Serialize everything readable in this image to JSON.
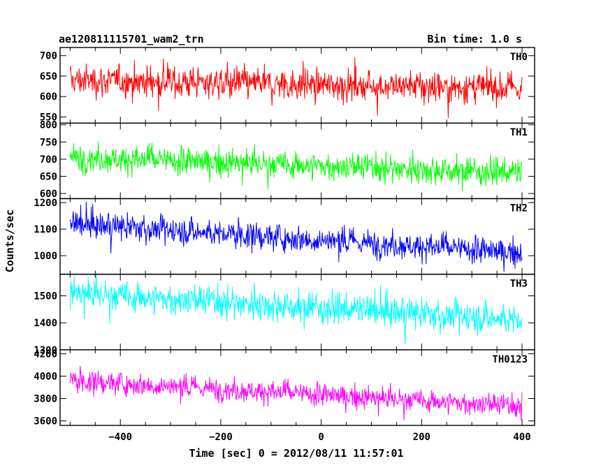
{
  "header": {
    "title": "ae120811115701_wam2_trn",
    "bin_time": "Bin time: 1.0 s"
  },
  "chart_data": {
    "type": "line",
    "ylabel": "Counts/sec",
    "xlabel": "Time [sec] 0 = 2012/08/11 11:57:01",
    "xlim": [
      -520,
      425
    ],
    "x_range": [
      -500,
      400
    ],
    "x_step": 1,
    "x_ticks": [
      -400,
      -200,
      0,
      200,
      400
    ],
    "x_tick_labels": [
      "−400",
      "−200",
      "0",
      "200",
      "400"
    ],
    "panels": [
      {
        "name": "TH0",
        "color": "#ff0000",
        "ylim": [
          535,
          720
        ],
        "yticks": [
          550,
          600,
          650,
          700
        ],
        "ytick_labels": [
          "550",
          "600",
          "650",
          "700"
        ],
        "start": 640,
        "end": 620,
        "noise": 27
      },
      {
        "name": "TH1",
        "color": "#00ff00",
        "ylim": [
          585,
          805
        ],
        "yticks": [
          600,
          650,
          700,
          750,
          800
        ],
        "ytick_labels": [
          "600",
          "650",
          "700",
          "750",
          "800"
        ],
        "start": 705,
        "end": 660,
        "noise": 28
      },
      {
        "name": "TH2",
        "color": "#0000ff",
        "ylim": [
          930,
          1215
        ],
        "yticks": [
          1000,
          1100,
          1200
        ],
        "ytick_labels": [
          "1000",
          "1100",
          "1200"
        ],
        "start": 1120,
        "end": 1010,
        "noise": 35
      },
      {
        "name": "TH3",
        "color": "#00ffff",
        "ylim": [
          1300,
          1580
        ],
        "yticks": [
          1300,
          1400,
          1500
        ],
        "ytick_labels": [
          "1300",
          "1400",
          "1500"
        ],
        "start": 1510,
        "end": 1410,
        "noise": 40
      },
      {
        "name": "TH0123",
        "color": "#ff00ff",
        "ylim": [
          3560,
          4235
        ],
        "yticks": [
          3600,
          3800,
          4000,
          4200
        ],
        "ytick_labels": [
          "3600",
          "3800",
          "4000",
          "4200"
        ],
        "start": 3960,
        "end": 3730,
        "noise": 70
      }
    ]
  }
}
